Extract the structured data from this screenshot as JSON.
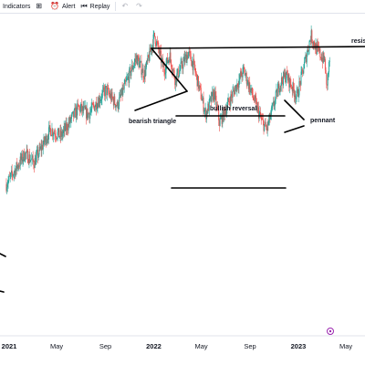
{
  "toolbar": {
    "indicators_label": "Indicators",
    "alert_label": "Alert",
    "replay_label": "Replay",
    "icons": [
      "grid-icon",
      "alert-clock-icon",
      "replay-icon",
      "undo-icon",
      "redo-icon"
    ]
  },
  "chart_data": {
    "type": "candlestick",
    "x_tick_labels": [
      "2021",
      "May",
      "Sep",
      "2022",
      "May",
      "Sep",
      "2023",
      "May"
    ],
    "annotations": [
      "resist",
      "bearish triangle",
      "bullish reversal",
      "pennant"
    ],
    "colors": {
      "up": "#26a69a",
      "down": "#ef5350",
      "lines": "#000000",
      "badge": "#9c27b0"
    },
    "price_path": [
      {
        "date": "2020-12-25",
        "price": 20
      },
      {
        "date": "2021-02-10",
        "price": 34
      },
      {
        "date": "2021-03-05",
        "price": 30
      },
      {
        "date": "2021-04-15",
        "price": 45
      },
      {
        "date": "2021-05-12",
        "price": 42
      },
      {
        "date": "2021-06-25",
        "price": 55
      },
      {
        "date": "2021-07-20",
        "price": 52
      },
      {
        "date": "2021-09-02",
        "price": 63
      },
      {
        "date": "2021-10-01",
        "price": 56
      },
      {
        "date": "2021-11-18",
        "price": 78
      },
      {
        "date": "2021-12-08",
        "price": 70
      },
      {
        "date": "2022-01-03",
        "price": 88
      },
      {
        "date": "2022-01-27",
        "price": 72
      },
      {
        "date": "2022-02-10",
        "price": 79
      },
      {
        "date": "2022-02-24",
        "price": 68
      },
      {
        "date": "2022-03-29",
        "price": 80
      },
      {
        "date": "2022-04-12",
        "price": 74
      },
      {
        "date": "2022-05-12",
        "price": 52
      },
      {
        "date": "2022-06-02",
        "price": 62
      },
      {
        "date": "2022-06-16",
        "price": 48
      },
      {
        "date": "2022-07-08",
        "price": 57
      },
      {
        "date": "2022-08-16",
        "price": 72
      },
      {
        "date": "2022-09-30",
        "price": 49
      },
      {
        "date": "2022-10-13",
        "price": 45
      },
      {
        "date": "2022-11-15",
        "price": 66
      },
      {
        "date": "2022-12-01",
        "price": 70
      },
      {
        "date": "2022-12-28",
        "price": 60
      },
      {
        "date": "2023-02-02",
        "price": 88
      },
      {
        "date": "2023-02-15",
        "price": 82
      },
      {
        "date": "2023-03-09",
        "price": 76
      },
      {
        "date": "2023-03-13",
        "price": 64
      },
      {
        "date": "2023-03-22",
        "price": 78
      }
    ]
  }
}
